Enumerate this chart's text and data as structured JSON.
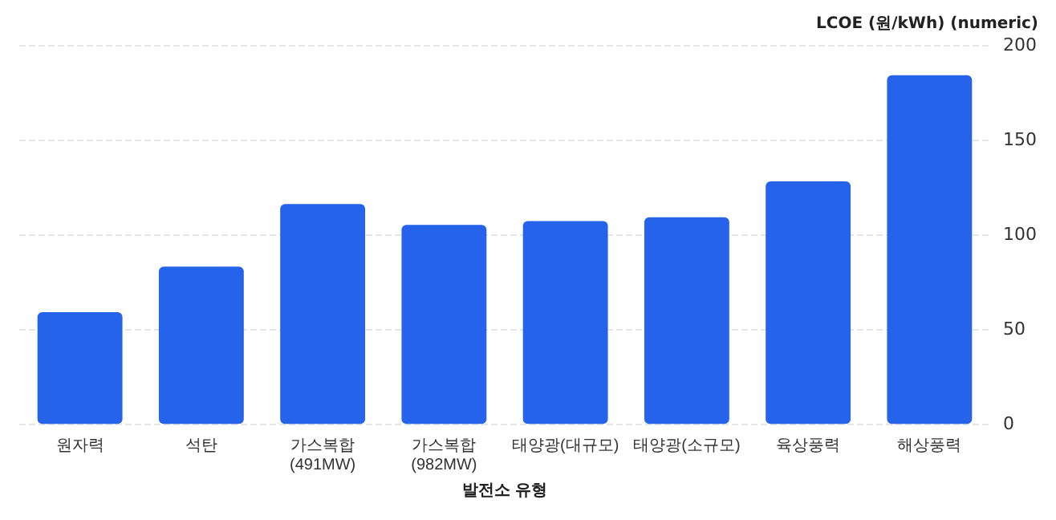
{
  "chart_data": {
    "type": "bar",
    "ylabel": "LCOE (원/kWh) (numeric)",
    "xlabel": "발전소 유형",
    "categories": [
      "원자력",
      "석탄",
      "가스복합(491MW)",
      "가스복합(982MW)",
      "태양광(대규모)",
      "태양광(소규모)",
      "육상풍력",
      "해상풍력"
    ],
    "values": [
      59,
      83,
      116,
      105,
      107,
      109,
      128,
      184
    ],
    "color": "#2563eb",
    "ylim": [
      0,
      200
    ],
    "yticks": [
      0,
      50,
      100,
      150,
      200
    ],
    "grid": "y"
  }
}
